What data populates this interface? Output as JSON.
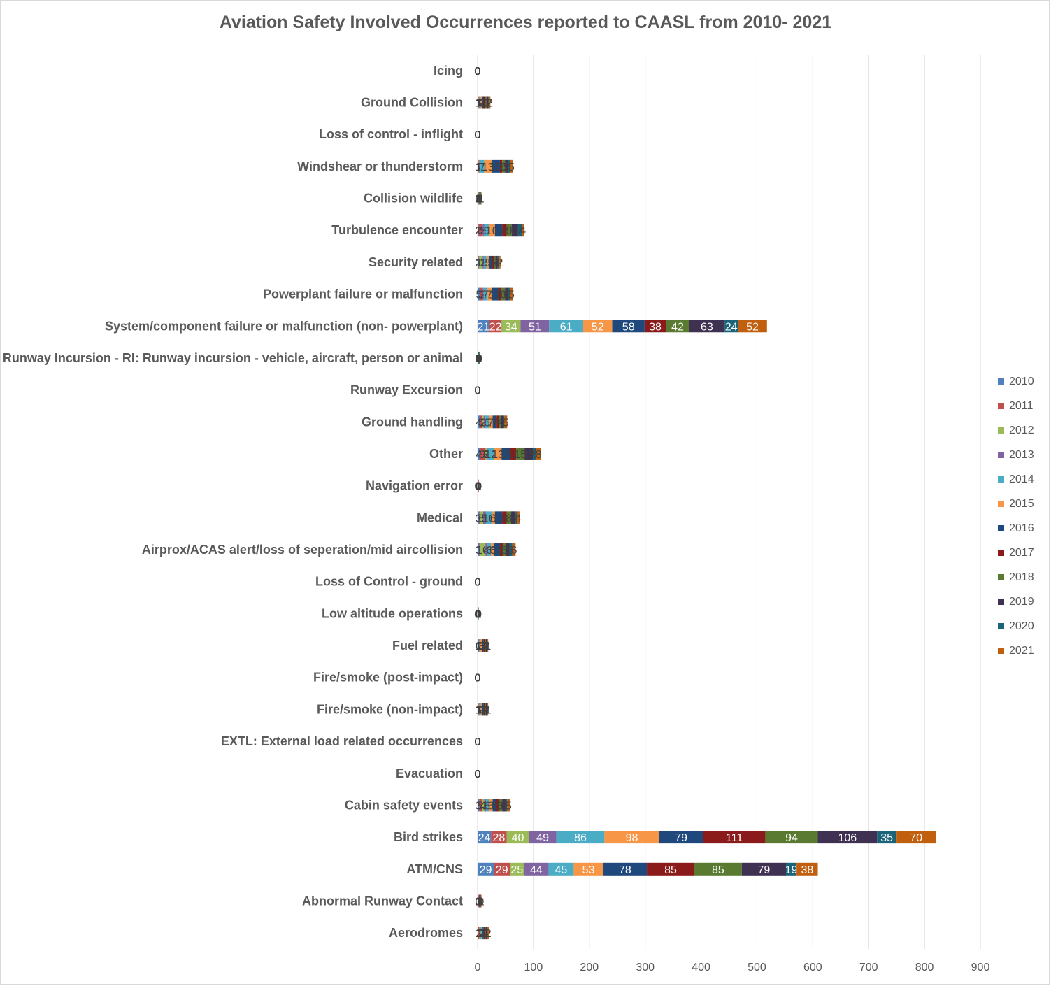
{
  "chart_data": {
    "type": "bar",
    "orientation": "horizontal",
    "stacked": true,
    "title": "Aviation Safety Involved Occurrences reported to CAASL from 2010- 2021",
    "xlim": [
      0,
      900
    ],
    "xticks": [
      "0",
      "100",
      "200",
      "300",
      "400",
      "500",
      "600",
      "700",
      "800",
      "900"
    ],
    "grid": true,
    "legend_position": "right",
    "categories": [
      "Icing",
      "Ground Collision",
      "Loss of control - inflight",
      "Windshear or thunderstorm",
      "Collision wildlife",
      "Turbulence encounter",
      "Security related",
      "Powerplant failure or malfunction",
      "System/component failure or malfunction (non- powerplant)",
      "Runway Incursion - RI: Runway incursion - vehicle, aircraft, person or animal",
      "Runway Excursion",
      "Ground handling",
      "Other",
      "Navigation error",
      "Medical",
      "Airprox/ACAS alert/loss of seperation/mid aircollision",
      "Loss of Control - ground",
      "Low altitude operations",
      "Fuel related",
      "Fire/smoke (post-impact)",
      "Fire/smoke (non-impact)",
      "EXTL: External load related occurrences",
      "Evacuation",
      "Cabin safety events",
      "Bird strikes",
      "ATM/CNS",
      "Abnormal Runway  Contact",
      "Aerodromes"
    ],
    "series": [
      {
        "name": "2010",
        "color": "#4f81bd",
        "values": [
          0,
          1,
          0,
          1,
          1,
          2,
          2,
          5,
          21,
          1,
          0,
          4,
          4,
          0,
          3,
          3,
          0,
          0,
          1,
          0,
          1,
          0,
          0,
          3,
          24,
          29,
          1,
          1
        ]
      },
      {
        "name": "2011",
        "color": "#c0504d",
        "values": [
          0,
          1,
          0,
          1,
          0,
          6,
          1,
          3,
          22,
          0,
          0,
          5,
          9,
          1,
          1,
          1,
          0,
          0,
          1,
          0,
          1,
          0,
          0,
          5,
          28,
          29,
          0,
          2
        ]
      },
      {
        "name": "2012",
        "color": "#9bbb59",
        "values": [
          0,
          1,
          0,
          1,
          0,
          1,
          6,
          1,
          34,
          0,
          0,
          2,
          3,
          0,
          6,
          10,
          0,
          0,
          0,
          0,
          1,
          0,
          0,
          4,
          40,
          25,
          0,
          1
        ]
      },
      {
        "name": "2013",
        "color": "#8064a2",
        "values": [
          0,
          1,
          0,
          2,
          0,
          3,
          2,
          2,
          51,
          0,
          0,
          3,
          2,
          0,
          5,
          4,
          0,
          0,
          1,
          0,
          1,
          0,
          0,
          3,
          49,
          44,
          0,
          1
        ]
      },
      {
        "name": "2014",
        "color": "#4bacc6",
        "values": [
          0,
          2,
          0,
          7,
          0,
          9,
          5,
          7,
          61,
          0,
          0,
          6,
          12,
          0,
          10,
          6,
          0,
          0,
          2,
          0,
          2,
          0,
          0,
          6,
          86,
          45,
          0,
          2
        ]
      },
      {
        "name": "2015",
        "color": "#f79646",
        "values": [
          0,
          2,
          0,
          13,
          1,
          10,
          5,
          7,
          52,
          0,
          0,
          7,
          13,
          0,
          6,
          6,
          0,
          0,
          3,
          0,
          2,
          0,
          0,
          6,
          98,
          53,
          1,
          2
        ]
      },
      {
        "name": "2016",
        "color": "#1f497d",
        "values": [
          0,
          2,
          0,
          15,
          1,
          13,
          5,
          12,
          58,
          1,
          0,
          7,
          15,
          0,
          13,
          10,
          0,
          0,
          3,
          0,
          3,
          0,
          0,
          6,
          79,
          78,
          1,
          2
        ]
      },
      {
        "name": "2017",
        "color": "#8b1a1a",
        "values": [
          0,
          3,
          0,
          4,
          0,
          8,
          3,
          6,
          38,
          0,
          0,
          4,
          11,
          1,
          8,
          5,
          0,
          1,
          2,
          0,
          2,
          0,
          0,
          5,
          111,
          85,
          1,
          2
        ]
      },
      {
        "name": "2018",
        "color": "#5a7a32",
        "values": [
          0,
          3,
          0,
          5,
          1,
          9,
          3,
          6,
          42,
          1,
          0,
          4,
          15,
          0,
          8,
          6,
          0,
          0,
          2,
          0,
          2,
          0,
          0,
          6,
          94,
          85,
          1,
          2
        ]
      },
      {
        "name": "2019",
        "color": "#3f3151",
        "values": [
          0,
          3,
          0,
          5,
          1,
          11,
          4,
          6,
          63,
          0,
          0,
          4,
          15,
          0,
          8,
          6,
          0,
          0,
          2,
          0,
          2,
          0,
          0,
          6,
          106,
          79,
          1,
          2
        ]
      },
      {
        "name": "2020",
        "color": "#1b6378",
        "values": [
          0,
          2,
          0,
          4,
          1,
          7,
          3,
          3,
          24,
          1,
          0,
          2,
          6,
          0,
          3,
          5,
          0,
          1,
          1,
          0,
          1,
          0,
          0,
          3,
          35,
          19,
          0,
          1
        ]
      },
      {
        "name": "2021",
        "color": "#c0600f",
        "values": [
          0,
          2,
          0,
          5,
          1,
          4,
          2,
          5,
          52,
          1,
          0,
          5,
          8,
          0,
          4,
          6,
          0,
          0,
          1,
          0,
          1,
          0,
          0,
          5,
          70,
          38,
          1,
          2
        ]
      }
    ]
  }
}
